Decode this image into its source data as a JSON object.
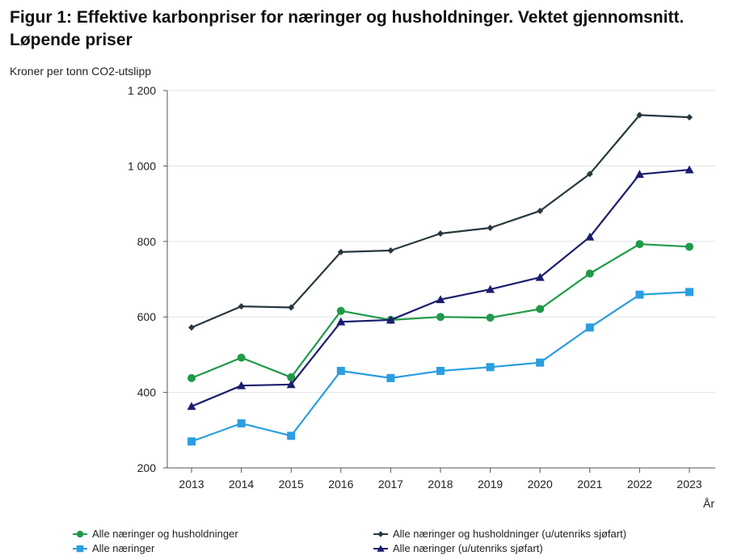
{
  "chart_data": {
    "type": "line",
    "title": "Figur 1: Effektive karbonpriser for næringer og husholdninger. Vektet gjennomsnitt. Løpende priser",
    "ylabel": "Kroner per tonn CO2-utslipp",
    "xlabel": "År",
    "ylim": [
      200,
      1200
    ],
    "yticks": [
      200,
      400,
      600,
      800,
      1000,
      1200
    ],
    "ytick_labels": [
      "200",
      "400",
      "600",
      "800",
      "1 000",
      "1 200"
    ],
    "grid": "horizontal",
    "legend_position": "bottom",
    "categories": [
      "2013",
      "2014",
      "2015",
      "2016",
      "2017",
      "2018",
      "2019",
      "2020",
      "2021",
      "2022",
      "2023"
    ],
    "series": [
      {
        "name": "Alle næringer og husholdninger",
        "color": "#1f9a48",
        "marker": "circle",
        "values": [
          438,
          492,
          440,
          616,
          592,
          600,
          598,
          621,
          715,
          793,
          786
        ]
      },
      {
        "name": "Alle næringer",
        "color": "#2b9ee0",
        "marker": "square",
        "values": [
          270,
          318,
          285,
          457,
          438,
          457,
          467,
          479,
          572,
          659,
          666
        ]
      },
      {
        "name": "Alle næringer og husholdninger (u/utenriks sjøfart)",
        "color": "#27393f",
        "marker": "diamond",
        "values": [
          572,
          628,
          625,
          772,
          776,
          821,
          836,
          881,
          979,
          1135,
          1129
        ]
      },
      {
        "name": "Alle næringer (u/utenriks sjøfart)",
        "color": "#1a1d6e",
        "marker": "triangle",
        "values": [
          363,
          418,
          421,
          587,
          592,
          646,
          673,
          705,
          812,
          978,
          990
        ]
      }
    ]
  }
}
